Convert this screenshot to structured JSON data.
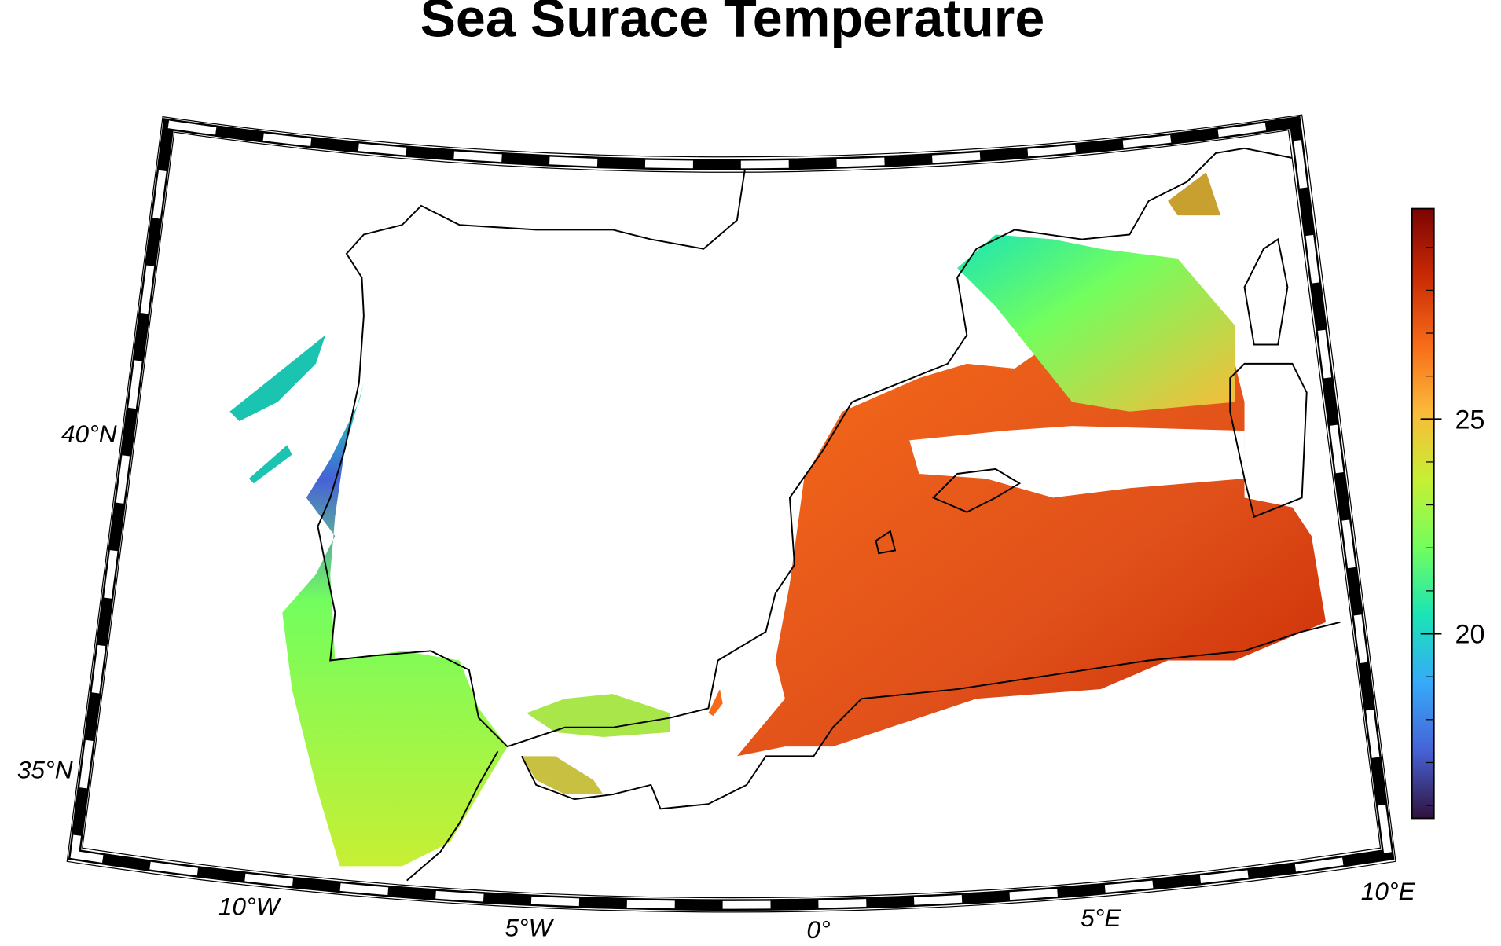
{
  "title": "Sea Surace Temperature",
  "map": {
    "lat_labels": [
      "40°N",
      "35°N"
    ],
    "lon_labels": [
      "10°W",
      "5°W",
      "0°",
      "5°E",
      "10°E"
    ]
  },
  "colorbar": {
    "range": [
      15.7,
      29.9
    ],
    "ticks": [
      20,
      25
    ],
    "colormap": [
      "#30123b",
      "#4662d7",
      "#36aaf9",
      "#1ae4b6",
      "#72fe5e",
      "#c7ef34",
      "#faba39",
      "#f66b19",
      "#ca2a04",
      "#7a0403"
    ]
  }
}
